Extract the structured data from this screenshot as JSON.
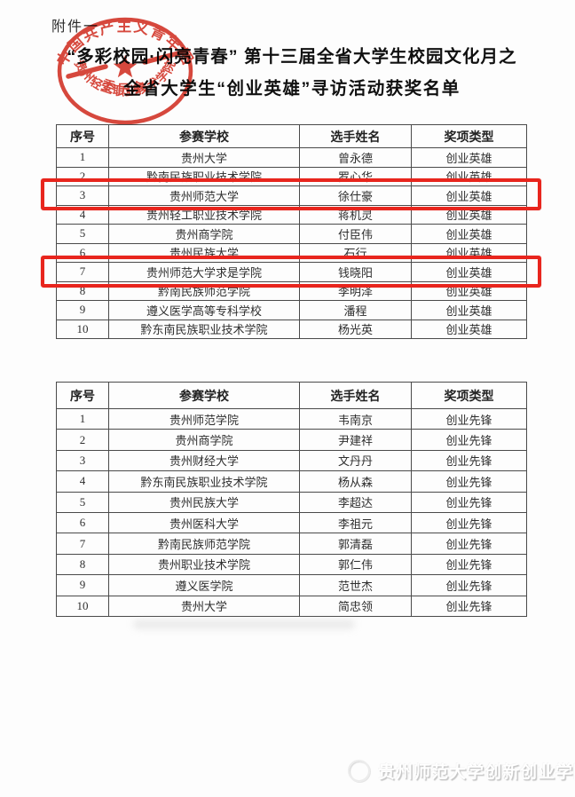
{
  "page": {
    "attachment_label": "附件一",
    "title_line1": "“多彩校园·闪亮青春”  第十三届全省大学生校园文化月之",
    "title_line2": "全省大学生“创业英雄”寻访活动获奖名单"
  },
  "stamp": {
    "arc_top": "中国共产主义青年团",
    "arc_middle": "贵州轻工职业技术学院",
    "arc_bottom": "委员会",
    "color": "#d5382c"
  },
  "tables": [
    {
      "headers": [
        "序号",
        "参赛学校",
        "选手姓名",
        "奖项类型"
      ],
      "rows": [
        {
          "no": "1",
          "school": "贵州大学",
          "name": "曾永德",
          "award": "创业英雄"
        },
        {
          "no": "2",
          "school": "黔南民族职业技术学院",
          "name": "罗心华",
          "award": "创业英雄"
        },
        {
          "no": "3",
          "school": "贵州师范大学",
          "name": "徐仕豪",
          "award": "创业英雄"
        },
        {
          "no": "4",
          "school": "贵州轻工职业技术学院",
          "name": "蒋机灵",
          "award": "创业英雄"
        },
        {
          "no": "5",
          "school": "贵州商学院",
          "name": "付臣伟",
          "award": "创业英雄"
        },
        {
          "no": "6",
          "school": "贵州民族大学",
          "name": "石行",
          "award": "创业英雄"
        },
        {
          "no": "7",
          "school": "贵州师范大学求是学院",
          "name": "钱晓阳",
          "award": "创业英雄"
        },
        {
          "no": "8",
          "school": "黔南民族师范学院",
          "name": "李明泽",
          "award": "创业英雄"
        },
        {
          "no": "9",
          "school": "遵义医学高等专科学校",
          "name": "潘程",
          "award": "创业英雄"
        },
        {
          "no": "10",
          "school": "黔东南民族职业技术学院",
          "name": "杨光英",
          "award": "创业英雄"
        }
      ],
      "highlighted_rows": [
        3,
        7
      ],
      "highlight_color": "#e8251d"
    },
    {
      "headers": [
        "序号",
        "参赛学校",
        "选手姓名",
        "奖项类型"
      ],
      "rows": [
        {
          "no": "1",
          "school": "贵州师范学院",
          "name": "韦南京",
          "award": "创业先锋"
        },
        {
          "no": "2",
          "school": "贵州商学院",
          "name": "尹建祥",
          "award": "创业先锋"
        },
        {
          "no": "3",
          "school": "贵州财经大学",
          "name": "文丹丹",
          "award": "创业先锋"
        },
        {
          "no": "4",
          "school": "黔东南民族职业技术学院",
          "name": "杨从森",
          "award": "创业先锋"
        },
        {
          "no": "5",
          "school": "贵州民族大学",
          "name": "李超达",
          "award": "创业先锋"
        },
        {
          "no": "6",
          "school": "贵州医科大学",
          "name": "李祖元",
          "award": "创业先锋"
        },
        {
          "no": "7",
          "school": "黔南民族师范学院",
          "name": "郭清磊",
          "award": "创业先锋"
        },
        {
          "no": "8",
          "school": "贵州职业技术学院",
          "name": "郭仁伟",
          "award": "创业先锋"
        },
        {
          "no": "9",
          "school": "遵义医学院",
          "name": "范世杰",
          "award": "创业先锋"
        },
        {
          "no": "10",
          "school": "贵州大学",
          "name": "简忠领",
          "award": "创业先锋"
        }
      ],
      "highlighted_rows": []
    }
  ],
  "footer": {
    "watermark": "贵州师范大学创新创业学院"
  }
}
